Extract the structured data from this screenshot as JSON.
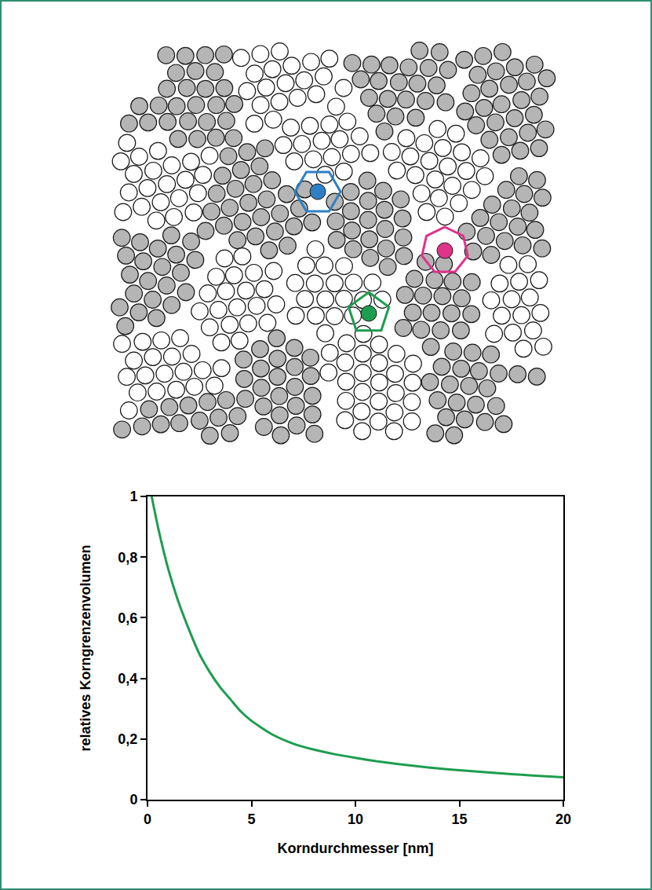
{
  "chart_data": {
    "type": "line",
    "xlabel": "Korndurchmesser [nm]",
    "ylabel": "relatives Korngrenzenvolumen",
    "x": [
      0.2,
      0.5,
      1,
      1.5,
      2,
      2.5,
      3,
      3.5,
      4,
      4.5,
      5,
      6,
      7,
      8,
      9,
      10,
      11,
      12,
      13,
      14,
      15,
      16,
      17,
      18,
      19,
      20
    ],
    "values": [
      1.0,
      0.9,
      0.76,
      0.65,
      0.56,
      0.48,
      0.42,
      0.37,
      0.33,
      0.29,
      0.26,
      0.215,
      0.185,
      0.165,
      0.15,
      0.138,
      0.127,
      0.118,
      0.11,
      0.103,
      0.097,
      0.092,
      0.087,
      0.082,
      0.078,
      0.074
    ],
    "color": "#1d9d4f",
    "xlim": [
      0,
      20
    ],
    "ylim": [
      0,
      1
    ],
    "xticks": [
      0,
      5,
      10,
      15,
      20
    ],
    "yticks": [
      0,
      {
        "value": 0.2,
        "label": "0,2"
      },
      {
        "value": 0.4,
        "label": "0,4"
      },
      {
        "value": 0.6,
        "label": "0,6"
      },
      {
        "value": 0.8,
        "label": "0,8"
      },
      1
    ],
    "grid": false
  }
}
